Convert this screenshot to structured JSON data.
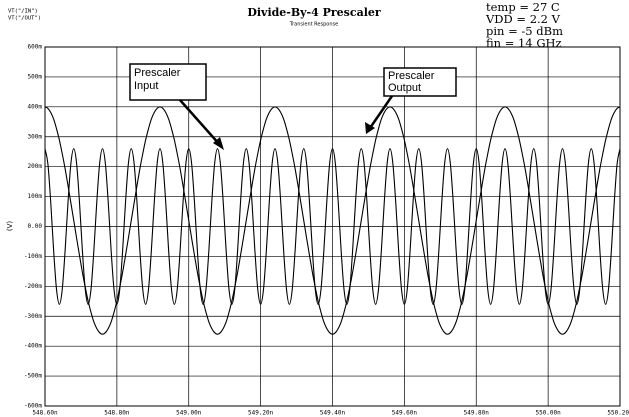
{
  "chart_data": {
    "type": "line",
    "title": "Divide-By-4 Prescaler",
    "subtitle": "Transient Response",
    "y_label": "(V)",
    "annotations": [
      "temp = 27 C",
      "VDD = 2.2 V",
      "pin = -5 dBm",
      "fin = 14 GHz"
    ],
    "callouts": [
      "Prescaler Input",
      "Prescaler Output"
    ],
    "grid": true,
    "xlim": [
      548.6,
      550.2
    ],
    "ylim": [
      -0.6,
      0.6
    ],
    "xticks": [
      {
        "value": 548.6,
        "label": "548.60n"
      },
      {
        "value": 548.8,
        "label": "548.80n"
      },
      {
        "value": 549.0,
        "label": "549.00n"
      },
      {
        "value": 549.2,
        "label": "549.20n"
      },
      {
        "value": 549.4,
        "label": "549.40n"
      },
      {
        "value": 549.6,
        "label": "549.60n"
      },
      {
        "value": 549.8,
        "label": "549.80n"
      },
      {
        "value": 550.0,
        "label": "550.00n"
      },
      {
        "value": 550.2,
        "label": "550.20n"
      }
    ],
    "yticks": [
      {
        "value": 0.6,
        "label": "600m"
      },
      {
        "value": 0.5,
        "label": "500m"
      },
      {
        "value": 0.4,
        "label": "400m"
      },
      {
        "value": 0.3,
        "label": "300m"
      },
      {
        "value": 0.2,
        "label": "200m"
      },
      {
        "value": 0.1,
        "label": "100m"
      },
      {
        "value": 0,
        "label": "0.00"
      },
      {
        "value": -0.1,
        "label": "-100m"
      },
      {
        "value": -0.2,
        "label": "-200m"
      },
      {
        "value": -0.3,
        "label": "-300m"
      },
      {
        "value": -0.4,
        "label": "-400m"
      },
      {
        "value": -0.5,
        "label": "-500m"
      },
      {
        "value": -0.6,
        "label": "-600m"
      }
    ],
    "x": [
      548.6,
      548.608,
      548.616,
      548.624,
      548.632,
      548.64,
      548.648,
      548.656,
      548.664,
      548.672,
      548.68,
      548.688,
      548.696,
      548.704,
      548.712,
      548.72,
      548.728,
      548.736,
      548.744,
      548.752,
      548.76,
      548.768,
      548.776,
      548.784,
      548.792,
      548.8,
      548.808,
      548.816,
      548.824,
      548.832,
      548.84,
      548.848,
      548.856,
      548.864,
      548.872,
      548.88,
      548.888,
      548.896,
      548.904,
      548.912,
      548.92,
      548.928,
      548.936,
      548.944,
      548.952,
      548.96,
      548.968,
      548.976,
      548.984,
      548.992,
      549,
      549.008,
      549.016,
      549.024,
      549.032,
      549.04,
      549.048,
      549.056,
      549.064,
      549.072,
      549.08,
      549.088,
      549.096,
      549.104,
      549.112,
      549.12,
      549.128,
      549.136,
      549.144,
      549.152,
      549.16,
      549.168,
      549.176,
      549.184,
      549.192,
      549.2,
      549.208,
      549.216,
      549.224,
      549.232,
      549.24,
      549.248,
      549.256,
      549.264,
      549.272,
      549.28,
      549.288,
      549.296,
      549.304,
      549.312,
      549.32,
      549.328,
      549.336,
      549.344,
      549.352,
      549.36,
      549.368,
      549.376,
      549.384,
      549.392,
      549.4,
      549.408,
      549.416,
      549.424,
      549.432,
      549.44,
      549.448,
      549.456,
      549.464,
      549.472,
      549.48,
      549.488,
      549.496,
      549.504,
      549.512,
      549.52,
      549.528,
      549.536,
      549.544,
      549.552,
      549.56,
      549.568,
      549.576,
      549.584,
      549.592,
      549.6,
      549.608,
      549.616,
      549.624,
      549.632,
      549.64,
      549.648,
      549.656,
      549.664,
      549.672,
      549.68,
      549.688,
      549.696,
      549.704,
      549.712,
      549.72,
      549.728,
      549.736,
      549.744,
      549.752,
      549.76,
      549.768,
      549.776,
      549.784,
      549.792,
      549.8,
      549.808,
      549.816,
      549.824,
      549.832,
      549.84,
      549.848,
      549.856,
      549.864,
      549.872,
      549.88,
      549.888,
      549.896,
      549.904,
      549.912,
      549.92,
      549.928,
      549.936,
      549.944,
      549.952,
      549.96,
      549.968,
      549.976,
      549.984,
      549.992,
      550,
      550.008,
      550.016,
      550.024,
      550.032,
      550.04,
      550.048,
      550.056,
      550.064,
      550.072,
      550.08,
      550.088,
      550.096,
      550.104,
      550.112,
      550.12,
      550.128,
      550.136,
      550.144,
      550.152,
      550.16,
      550.168,
      550.176,
      550.184,
      550.192,
      550.2
    ],
    "series": [
      {
        "name": "VT(\"/IN\")",
        "color": "#000000",
        "values": [
          0.26,
          0.21,
          0.08,
          -0.08,
          -0.21,
          -0.26,
          -0.21,
          -0.08,
          0.08,
          0.21,
          0.26,
          0.21,
          0.08,
          -0.08,
          -0.21,
          -0.26,
          -0.21,
          -0.08,
          0.08,
          0.21,
          0.26,
          0.21,
          0.08,
          -0.08,
          -0.21,
          -0.26,
          -0.21,
          -0.08,
          0.08,
          0.21,
          0.26,
          0.21,
          0.08,
          -0.08,
          -0.21,
          -0.26,
          -0.21,
          -0.08,
          0.08,
          0.21,
          0.26,
          0.21,
          0.08,
          -0.08,
          -0.21,
          -0.26,
          -0.21,
          -0.08,
          0.08,
          0.21,
          0.26,
          0.21,
          0.08,
          -0.08,
          -0.21,
          -0.26,
          -0.21,
          -0.08,
          0.08,
          0.21,
          0.26,
          0.21,
          0.08,
          -0.08,
          -0.21,
          -0.26,
          -0.21,
          -0.08,
          0.08,
          0.21,
          0.26,
          0.21,
          0.08,
          -0.08,
          -0.21,
          -0.26,
          -0.21,
          -0.08,
          0.08,
          0.21,
          0.26,
          0.21,
          0.08,
          -0.08,
          -0.21,
          -0.26,
          -0.21,
          -0.08,
          0.08,
          0.21,
          0.26,
          0.21,
          0.08,
          -0.08,
          -0.21,
          -0.26,
          -0.21,
          -0.08,
          0.08,
          0.21,
          0.26,
          0.21,
          0.08,
          -0.08,
          -0.21,
          -0.26,
          -0.21,
          -0.08,
          0.08,
          0.21,
          0.26,
          0.21,
          0.08,
          -0.08,
          -0.21,
          -0.26,
          -0.21,
          -0.08,
          0.08,
          0.21,
          0.26,
          0.21,
          0.08,
          -0.08,
          -0.21,
          -0.26,
          -0.21,
          -0.08,
          0.08,
          0.21,
          0.26,
          0.21,
          0.08,
          -0.08,
          -0.21,
          -0.26,
          -0.21,
          -0.08,
          0.08,
          0.21,
          0.26,
          0.21,
          0.08,
          -0.08,
          -0.21,
          -0.26,
          -0.21,
          -0.08,
          0.08,
          0.21,
          0.26,
          0.21,
          0.08,
          -0.08,
          -0.21,
          -0.26,
          -0.21,
          -0.08,
          0.08,
          0.21,
          0.26,
          0.21,
          0.08,
          -0.08,
          -0.21,
          -0.26,
          -0.21,
          -0.08,
          0.08,
          0.21,
          0.26,
          0.21,
          0.08,
          -0.08,
          -0.21,
          -0.26,
          -0.21,
          -0.08,
          0.08,
          0.21,
          0.26,
          0.21,
          0.08,
          -0.08,
          -0.21,
          -0.26,
          -0.21,
          -0.08,
          0.08,
          0.21,
          0.26,
          0.21,
          0.08,
          -0.08,
          -0.21,
          -0.26,
          -0.21,
          -0.08,
          0.08,
          0.21,
          0.26
        ]
      },
      {
        "name": "VT(\"/OUT\")",
        "color": "#000000",
        "values": [
          0.4,
          0.395,
          0.381,
          0.359,
          0.327,
          0.289,
          0.243,
          0.193,
          0.137,
          0.079,
          0.02,
          -0.039,
          -0.097,
          -0.153,
          -0.203,
          -0.249,
          -0.287,
          -0.319,
          -0.341,
          -0.355,
          -0.36,
          -0.355,
          -0.341,
          -0.319,
          -0.287,
          -0.249,
          -0.203,
          -0.153,
          -0.097,
          -0.039,
          0.02,
          0.079,
          0.137,
          0.193,
          0.243,
          0.289,
          0.327,
          0.359,
          0.381,
          0.395,
          0.4,
          0.395,
          0.381,
          0.359,
          0.327,
          0.289,
          0.243,
          0.193,
          0.137,
          0.079,
          0.02,
          -0.039,
          -0.097,
          -0.153,
          -0.203,
          -0.249,
          -0.287,
          -0.319,
          -0.341,
          -0.355,
          -0.36,
          -0.355,
          -0.341,
          -0.319,
          -0.287,
          -0.249,
          -0.203,
          -0.153,
          -0.097,
          -0.039,
          0.02,
          0.079,
          0.137,
          0.193,
          0.243,
          0.289,
          0.327,
          0.359,
          0.381,
          0.395,
          0.4,
          0.395,
          0.381,
          0.359,
          0.327,
          0.289,
          0.243,
          0.193,
          0.137,
          0.079,
          0.02,
          -0.039,
          -0.097,
          -0.153,
          -0.203,
          -0.249,
          -0.287,
          -0.319,
          -0.341,
          -0.355,
          -0.36,
          -0.355,
          -0.341,
          -0.319,
          -0.287,
          -0.249,
          -0.203,
          -0.153,
          -0.097,
          -0.039,
          0.02,
          0.079,
          0.137,
          0.193,
          0.243,
          0.289,
          0.327,
          0.359,
          0.381,
          0.395,
          0.4,
          0.395,
          0.381,
          0.359,
          0.327,
          0.289,
          0.243,
          0.193,
          0.137,
          0.079,
          0.02,
          -0.039,
          -0.097,
          -0.153,
          -0.203,
          -0.249,
          -0.287,
          -0.319,
          -0.341,
          -0.355,
          -0.36,
          -0.355,
          -0.341,
          -0.319,
          -0.287,
          -0.249,
          -0.203,
          -0.153,
          -0.097,
          -0.039,
          0.02,
          0.079,
          0.137,
          0.193,
          0.243,
          0.289,
          0.327,
          0.359,
          0.381,
          0.395,
          0.4,
          0.395,
          0.381,
          0.359,
          0.327,
          0.289,
          0.243,
          0.193,
          0.137,
          0.079,
          0.02,
          -0.039,
          -0.097,
          -0.153,
          -0.203,
          -0.249,
          -0.287,
          -0.319,
          -0.341,
          -0.355,
          -0.36,
          -0.355,
          -0.341,
          -0.319,
          -0.287,
          -0.249,
          -0.203,
          -0.153,
          -0.097,
          -0.039,
          0.02,
          0.079,
          0.137,
          0.193,
          0.243,
          0.289,
          0.327,
          0.359,
          0.381,
          0.395,
          0.4
        ]
      }
    ]
  }
}
